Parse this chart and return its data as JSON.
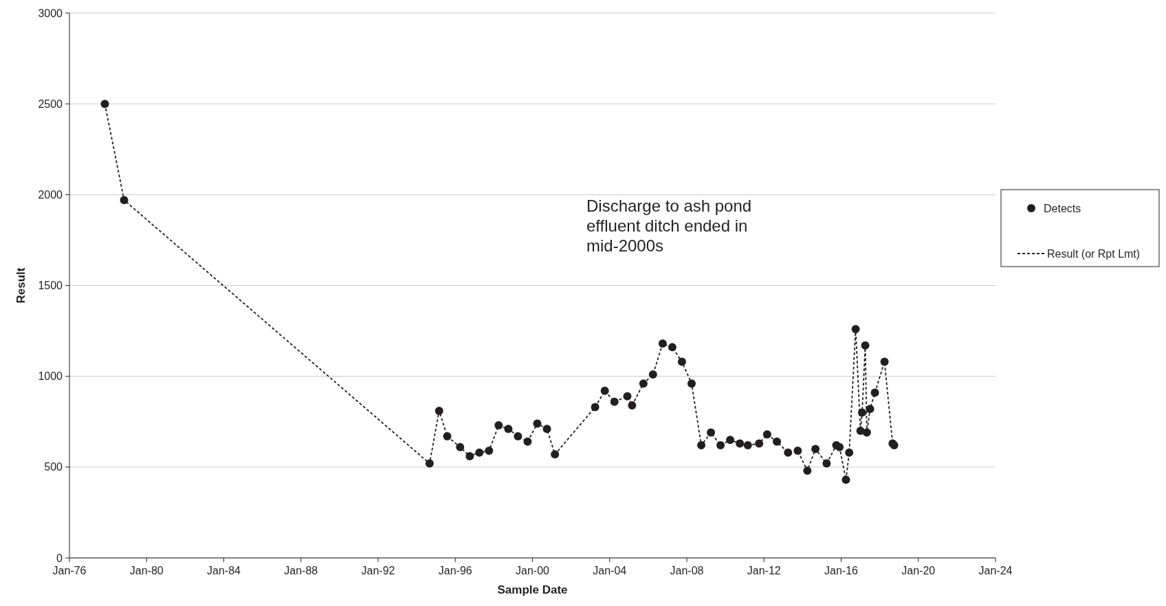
{
  "chart_data": {
    "type": "line",
    "xlabel": "Sample Date",
    "ylabel": "Result",
    "x": [
      "1977-11",
      "1978-11",
      "1994-09",
      "1995-03",
      "1995-08",
      "1996-04",
      "1996-10",
      "1997-04",
      "1997-10",
      "1998-04",
      "1998-10",
      "1999-04",
      "1999-10",
      "2000-04",
      "2000-10",
      "2001-03",
      "2003-04",
      "2003-10",
      "2004-04",
      "2004-12",
      "2005-03",
      "2005-10",
      "2006-04",
      "2006-10",
      "2007-04",
      "2007-10",
      "2008-04",
      "2008-10",
      "2009-04",
      "2009-10",
      "2010-04",
      "2010-10",
      "2011-03",
      "2011-10",
      "2012-03",
      "2012-09",
      "2013-04",
      "2013-10",
      "2014-04",
      "2014-09",
      "2015-04",
      "2015-10",
      "2015-12",
      "2016-04",
      "2016-06",
      "2016-10",
      "2017-01",
      "2017-02",
      "2017-04",
      "2017-05",
      "2017-07",
      "2017-10",
      "2018-04",
      "2018-09",
      "2018-10"
    ],
    "series": [
      {
        "name": "Detects",
        "type": "scatter",
        "marker": "circle",
        "color": "#231f20",
        "values": [
          2500,
          1970,
          520,
          810,
          670,
          610,
          560,
          580,
          590,
          730,
          710,
          670,
          640,
          740,
          710,
          570,
          830,
          920,
          860,
          890,
          840,
          960,
          1010,
          1180,
          1160,
          1080,
          960,
          620,
          690,
          620,
          650,
          630,
          620,
          630,
          680,
          640,
          580,
          590,
          480,
          600,
          520,
          620,
          610,
          430,
          580,
          1260,
          700,
          800,
          1170,
          690,
          820,
          910,
          1080,
          630,
          620
        ]
      },
      {
        "name": "Result (or Rpt Lmt)",
        "line_style": "dashed",
        "marker": "none",
        "color": "#231f20",
        "values": [
          2500,
          1970,
          520,
          810,
          670,
          610,
          560,
          580,
          590,
          730,
          710,
          670,
          640,
          740,
          710,
          570,
          830,
          920,
          860,
          890,
          840,
          960,
          1010,
          1180,
          1160,
          1080,
          960,
          620,
          690,
          620,
          650,
          630,
          620,
          630,
          680,
          640,
          580,
          590,
          480,
          600,
          520,
          620,
          610,
          430,
          580,
          1260,
          700,
          800,
          1170,
          690,
          820,
          910,
          1080,
          630,
          620
        ]
      }
    ],
    "xlim": [
      "1976-01",
      "2024-01"
    ],
    "xticks": [
      {
        "value": "1976-01",
        "label": "Jan-76"
      },
      {
        "value": "1980-01",
        "label": "Jan-80"
      },
      {
        "value": "1984-01",
        "label": "Jan-84"
      },
      {
        "value": "1988-01",
        "label": "Jan-88"
      },
      {
        "value": "1992-01",
        "label": "Jan-92"
      },
      {
        "value": "1996-01",
        "label": "Jan-96"
      },
      {
        "value": "2000-01",
        "label": "Jan-00"
      },
      {
        "value": "2004-01",
        "label": "Jan-04"
      },
      {
        "value": "2008-01",
        "label": "Jan-08"
      },
      {
        "value": "2012-01",
        "label": "Jan-12"
      },
      {
        "value": "2016-01",
        "label": "Jan-16"
      },
      {
        "value": "2020-01",
        "label": "Jan-20"
      },
      {
        "value": "2024-01",
        "label": "Jan-24"
      }
    ],
    "ylim": [
      0,
      3000
    ],
    "yticks": [
      0,
      500,
      1000,
      1500,
      2000,
      2500,
      3000
    ],
    "grid": "y",
    "legend": "right",
    "annotations": [
      "Discharge to ash pond effluent ditch ended in mid-2000s"
    ]
  }
}
